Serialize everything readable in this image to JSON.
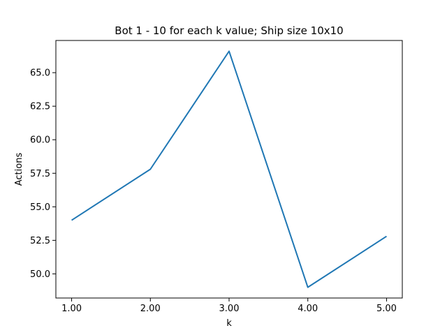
{
  "chart_data": {
    "type": "line",
    "title": "Bot 1 - 10 for each k value; Ship size 10x10",
    "xlabel": "k",
    "ylabel": "Actions",
    "x": [
      1.0,
      2.0,
      3.0,
      4.0,
      5.0
    ],
    "series": [
      {
        "values": [
          54.0,
          57.8,
          66.6,
          49.0,
          52.8
        ],
        "color": "#1f77b4"
      }
    ],
    "xlim": [
      0.8,
      5.2
    ],
    "ylim": [
      48.2,
      67.4
    ],
    "xticks": [
      1.0,
      2.0,
      3.0,
      4.0,
      5.0
    ],
    "xtick_labels": [
      "1.00",
      "2.00",
      "3.00",
      "4.00",
      "5.00"
    ],
    "yticks": [
      50.0,
      52.5,
      55.0,
      57.5,
      60.0,
      62.5,
      65.0
    ],
    "ytick_labels": [
      "50.0",
      "52.5",
      "55.0",
      "57.5",
      "60.0",
      "62.5",
      "65.0"
    ],
    "grid": false,
    "legend": "none"
  }
}
